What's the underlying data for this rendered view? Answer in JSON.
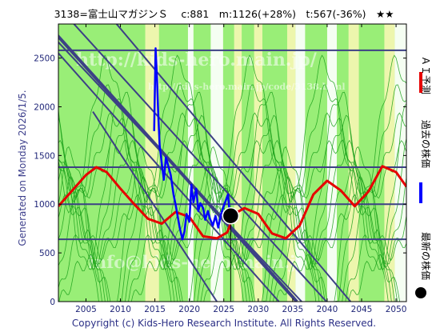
{
  "header": {
    "title": "3138=富士山マガジンＳ　 c:881　m:1126(+28%)　t:567(-36%)　★★"
  },
  "side": {
    "generated": "Generated on Monday 2026/1/5."
  },
  "footer": {
    "copyright": "Copyright (c) Kids-Hero Research Institute. All Rights Reserved."
  },
  "watermarks": [
    "http://kids-hero.main.jp/",
    "http://kids-hero.main.jp/code/3138.html",
    "info@kids-hero.main.jp"
  ],
  "legend": [
    {
      "label": "ＡＩ予測",
      "color": "#e60000"
    },
    {
      "label": "過去の株価",
      "color": "#0000ff"
    },
    {
      "label": "最新の株価",
      "color": "#000000"
    }
  ],
  "colors": {
    "bg_green": "#99ee77",
    "bg_yellow": "#f6f6b3",
    "bg_white": "#ffffff",
    "green_line": "#1aa01a",
    "trend_line": "#3c4085",
    "red_line": "#e60000",
    "blue_line": "#0000ff",
    "axis": "#1f2578"
  },
  "chart_data": {
    "type": "line",
    "xlim": [
      2001,
      2051.5
    ],
    "ylim": [
      0,
      2850
    ],
    "xticks": [
      2005,
      2010,
      2015,
      2020,
      2025,
      2030,
      2035,
      2040,
      2045,
      2050
    ],
    "yticks": [
      0,
      500,
      1000,
      1500,
      2000,
      2500
    ],
    "grid": false,
    "legend_position": "right",
    "latest": {
      "x": 2026.0,
      "y": 881
    },
    "marker_vline_x": 2026.0,
    "horizontal_levels": [
      640,
      1000,
      1380,
      2580
    ],
    "diagonals": [
      {
        "x": [
          2000.5,
          2035.6
        ],
        "y": [
          2760,
          0
        ]
      },
      {
        "x": [
          2000.5,
          2036.3
        ],
        "y": [
          2700,
          0
        ]
      },
      {
        "x": [
          2000.5,
          2033.0
        ],
        "y": [
          2590,
          0
        ]
      },
      {
        "x": [
          2003.0,
          2039.9
        ],
        "y": [
          2870,
          0
        ]
      },
      {
        "x": [
          2009.2,
          2043.4
        ],
        "y": [
          2870,
          0
        ]
      },
      {
        "x": [
          2006.0,
          2024.0
        ],
        "y": [
          1950,
          0
        ]
      }
    ],
    "series": [
      {
        "name": "ＡＩ予測",
        "x": [
          2001,
          2003,
          2005,
          2006.5,
          2008,
          2010,
          2012,
          2014,
          2016,
          2018,
          2020,
          2022,
          2024,
          2025.5,
          2026.5,
          2028,
          2030,
          2032,
          2034,
          2036,
          2038,
          2040,
          2042,
          2044,
          2046,
          2048,
          2050,
          2051.5
        ],
        "y": [
          980,
          1140,
          1300,
          1380,
          1330,
          1160,
          1000,
          850,
          800,
          920,
          870,
          670,
          650,
          710,
          900,
          960,
          900,
          700,
          650,
          780,
          1100,
          1240,
          1140,
          980,
          1130,
          1390,
          1330,
          1180
        ]
      },
      {
        "name": "過去の株価",
        "x": [
          2014.9,
          2015.1,
          2015.3,
          2015.5,
          2015.7,
          2016.0,
          2016.3,
          2016.6,
          2017.0,
          2017.3,
          2017.7,
          2018.0,
          2018.3,
          2018.6,
          2019.0,
          2019.3,
          2019.6,
          2020.0,
          2020.3,
          2020.6,
          2021.0,
          2021.3,
          2021.6,
          2022.0,
          2022.3,
          2022.7,
          2023.0,
          2023.4,
          2023.8,
          2024.2,
          2024.6,
          2025.0,
          2025.3,
          2025.6,
          2025.9
        ],
        "y": [
          1750,
          2600,
          2300,
          1900,
          1600,
          1420,
          1250,
          1480,
          1380,
          1300,
          1100,
          1000,
          880,
          760,
          640,
          720,
          900,
          820,
          1200,
          1020,
          1160,
          930,
          1010,
          960,
          840,
          930,
          850,
          780,
          880,
          760,
          900,
          980,
          1040,
          1100,
          881
        ]
      }
    ]
  }
}
